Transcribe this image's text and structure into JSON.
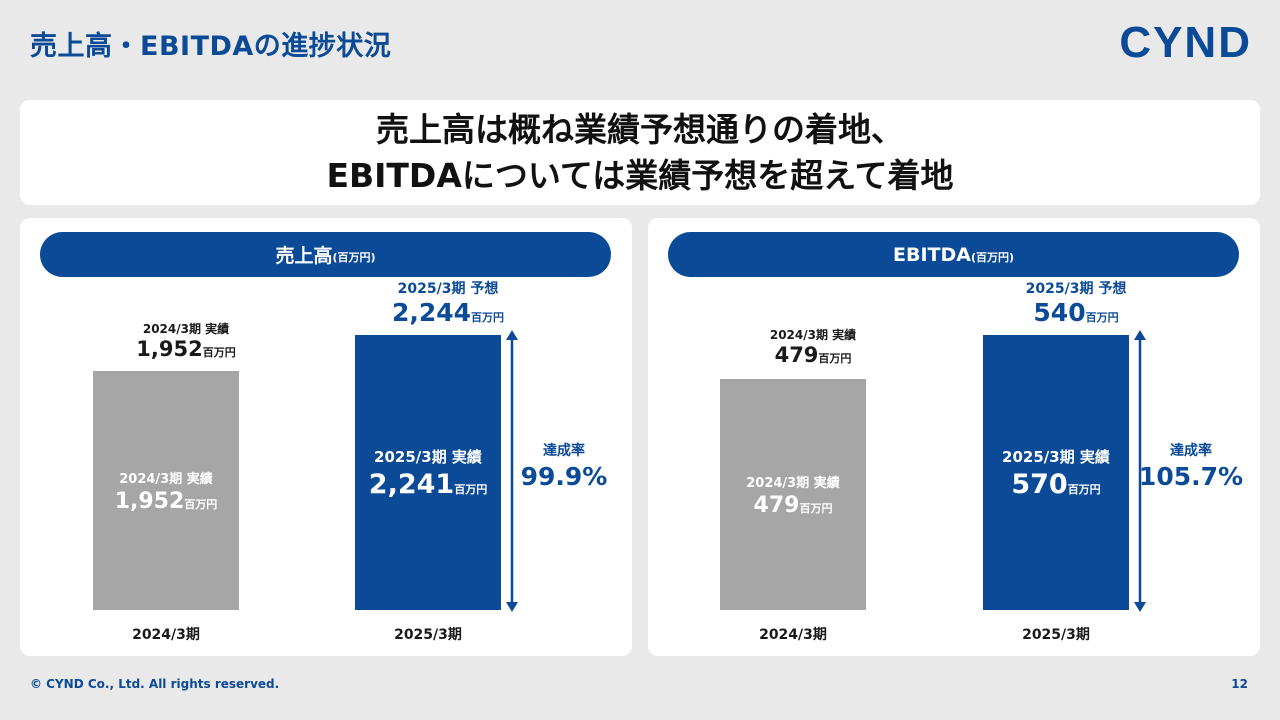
{
  "page_title": "売上高・EBITDAの進捗状況",
  "logo": "CYND",
  "headline": {
    "line1": "売上高は概ね業績予想通りの着地、",
    "line2": "EBITDAについては業績予想を超えて着地"
  },
  "unit": "百万円",
  "unit_paren": "(百万円)",
  "chart_data": [
    {
      "type": "bar",
      "title": "売上高",
      "categories": [
        "2024/3期",
        "2025/3期"
      ],
      "values": [
        1952,
        2241
      ],
      "forecast": 2244,
      "ylim": [
        0,
        2244
      ],
      "labels": {
        "prev_actual": "2024/3期 実績",
        "curr_actual": "2025/3期 実績",
        "curr_forecast": "2025/3期 予想",
        "prev_value": "1,952",
        "curr_value": "2,241",
        "forecast_value": "2,244"
      },
      "achievement": {
        "label": "達成率",
        "value": "99.9%"
      },
      "colors": {
        "prev": "#a6a6a6",
        "curr": "#0b4a96"
      }
    },
    {
      "type": "bar",
      "title": "EBITDA",
      "categories": [
        "2024/3期",
        "2025/3期"
      ],
      "values": [
        479,
        570
      ],
      "forecast": 540,
      "ylim": [
        0,
        570
      ],
      "labels": {
        "prev_actual": "2024/3期 実績",
        "curr_actual": "2025/3期 実績",
        "curr_forecast": "2025/3期 予想",
        "prev_value": "479",
        "curr_value": "570",
        "forecast_value": "540"
      },
      "achievement": {
        "label": "達成率",
        "value": "105.7%"
      },
      "colors": {
        "prev": "#a6a6a6",
        "curr": "#0b4a96"
      }
    }
  ],
  "footer": {
    "copyright": "© CYND Co., Ltd. All rights reserved.",
    "page_number": "12"
  }
}
